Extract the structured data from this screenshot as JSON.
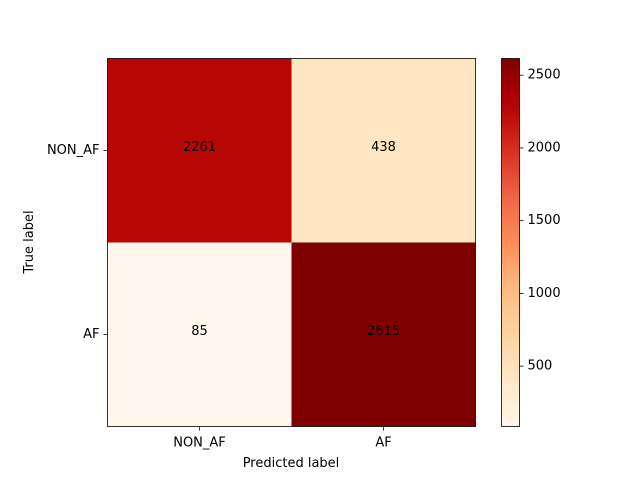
{
  "chart_data": {
    "type": "heatmap",
    "title": "",
    "xlabel": "Predicted label",
    "ylabel": "True label",
    "x_categories": [
      "NON_AF",
      "AF"
    ],
    "y_categories": [
      "NON_AF",
      "AF"
    ],
    "values": [
      [
        2261,
        438
      ],
      [
        85,
        2615
      ]
    ],
    "colormap": "OrRd",
    "colorbar": {
      "vmin": 85,
      "vmax": 2615,
      "ticks": [
        500,
        1000,
        1500,
        2000,
        2500
      ],
      "tick_labels": [
        "500",
        "1000",
        "1500",
        "2000",
        "2500"
      ]
    },
    "grid": false
  }
}
